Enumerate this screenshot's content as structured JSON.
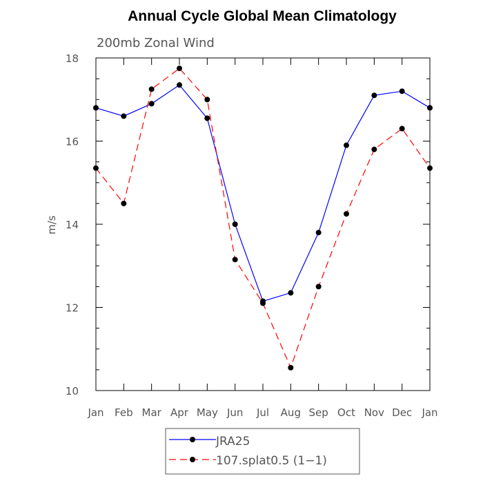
{
  "chart_data": {
    "type": "line",
    "title": "Annual Cycle Global Mean Climatology",
    "subtitle": "200mb Zonal Wind",
    "ylabel": "m/s",
    "xlabel": "",
    "categories": [
      "Jan",
      "Feb",
      "Mar",
      "Apr",
      "May",
      "Jun",
      "Jul",
      "Aug",
      "Sep",
      "Oct",
      "Nov",
      "Dec",
      "Jan"
    ],
    "ylim": [
      10,
      18
    ],
    "yticks": [
      10,
      12,
      14,
      16,
      18
    ],
    "legend_position": "bottom-center",
    "series": [
      {
        "name": "JRA25",
        "color": "#0000ff",
        "dash": "solid",
        "marker": "filled-circle",
        "values": [
          16.8,
          16.6,
          16.9,
          17.35,
          16.55,
          14.0,
          12.15,
          12.35,
          13.8,
          15.9,
          17.1,
          17.2,
          16.8
        ]
      },
      {
        "name": "107.splat0.5 (1−1)",
        "color": "#ff0000",
        "dash": "dashed",
        "marker": "filled-circle",
        "values": [
          15.35,
          14.5,
          17.25,
          17.75,
          17.0,
          13.15,
          12.1,
          10.55,
          12.5,
          14.25,
          15.8,
          16.3,
          15.35
        ]
      }
    ]
  }
}
